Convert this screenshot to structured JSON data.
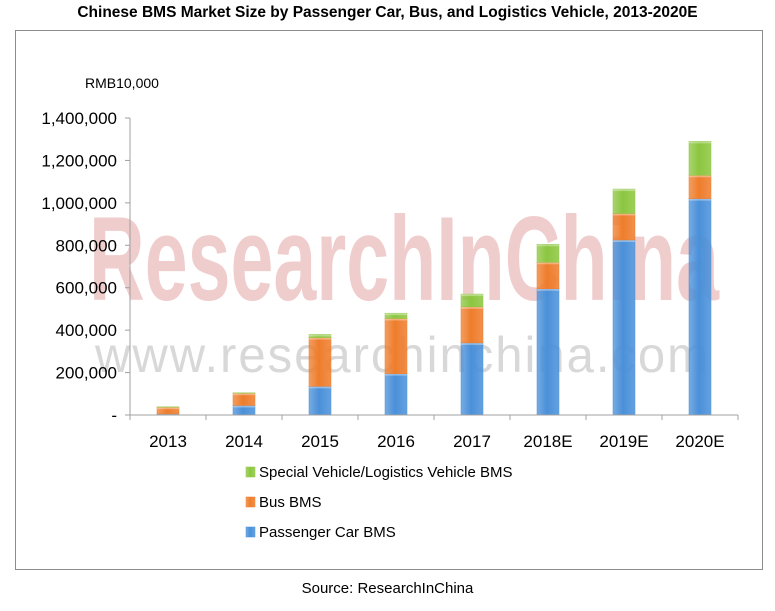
{
  "title": "Chinese BMS Market Size by Passenger Car, Bus, and Logistics Vehicle, 2013-2020E",
  "source": "Source: ResearchInChina",
  "watermark": {
    "brand": "ResearchInChina",
    "url": "www.researchinchina.com"
  },
  "colors": {
    "passenger": "#4a90d9",
    "bus": "#ee7d2c",
    "special": "#8cc63f",
    "axis": "#a0a0a0"
  },
  "chart_data": {
    "type": "bar",
    "stacked": true,
    "title": "Chinese BMS Market Size by Passenger Car, Bus, and Logistics Vehicle, 2013-2020E",
    "unit_label": "RMB10,000",
    "xlabel": "",
    "ylabel": "RMB10,000",
    "ylim": [
      0,
      1400000
    ],
    "yticks": [
      0,
      200000,
      400000,
      600000,
      800000,
      1000000,
      1200000,
      1400000
    ],
    "ytick_labels": [
      "-",
      "200,000",
      "400,000",
      "600,000",
      "800,000",
      "1,000,000",
      "1,200,000",
      "1,400,000"
    ],
    "categories": [
      "2013",
      "2014",
      "2015",
      "2016",
      "2017",
      "2018E",
      "2019E",
      "2020E"
    ],
    "series": [
      {
        "name": "Passenger Car BMS",
        "values": [
          5000,
          45000,
          135000,
          195000,
          340000,
          595000,
          825000,
          1020000
        ]
      },
      {
        "name": "Bus BMS",
        "values": [
          32000,
          58000,
          230000,
          260000,
          170000,
          125000,
          125000,
          110000
        ]
      },
      {
        "name": "Special Vehicle/Logistics Vehicle BMS",
        "values": [
          2000,
          2000,
          15000,
          25000,
          60000,
          85000,
          115000,
          160000
        ]
      }
    ],
    "legend_order": [
      "Special Vehicle/Logistics Vehicle BMS",
      "Bus BMS",
      "Passenger Car BMS"
    ],
    "legend_position": "bottom",
    "grid": false
  }
}
